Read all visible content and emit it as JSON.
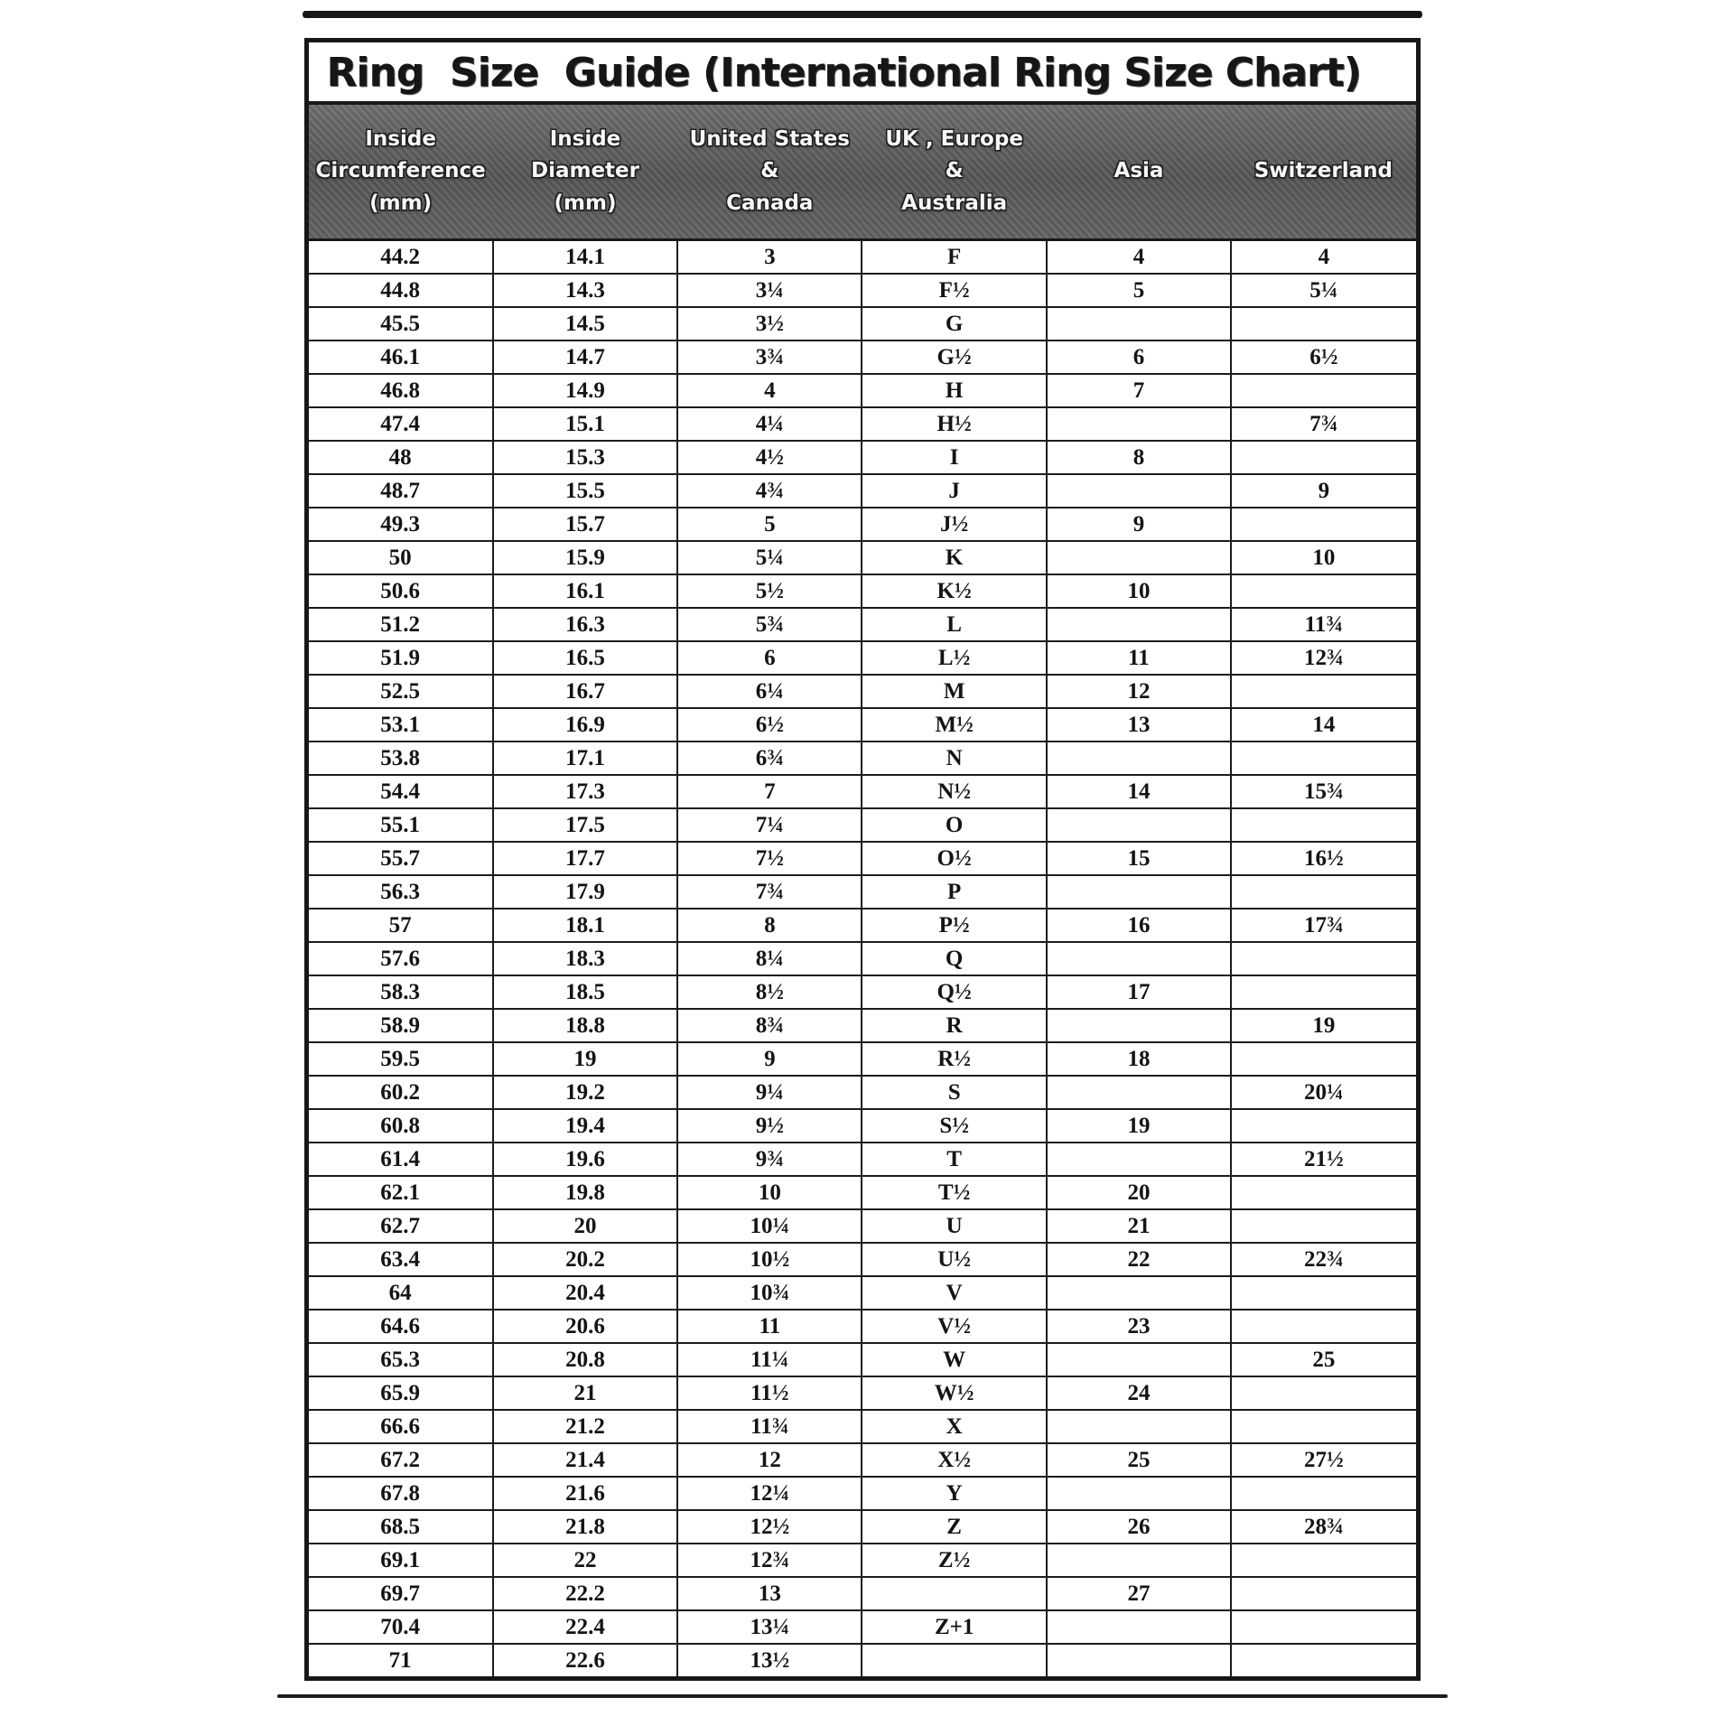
{
  "title": "Ring  Size  Guide (International Ring Size Chart)",
  "colors": {
    "border": "#171717",
    "header_band": "#616161",
    "header_text": "#f7f7f7",
    "page_background": "#ffffff"
  },
  "table": {
    "columns": [
      {
        "id": "inside-circumference",
        "label": "Inside Circumference (mm)",
        "label_lines": [
          "Inside",
          "Circumference",
          "(mm)"
        ]
      },
      {
        "id": "inside-diameter",
        "label": "Inside Diameter (mm)",
        "label_lines": [
          "Inside",
          "Diameter",
          "(mm)"
        ]
      },
      {
        "id": "us-canada",
        "label": "United States & Canada",
        "label_lines": [
          "United States",
          "&",
          "Canada"
        ]
      },
      {
        "id": "uk-europe-australia",
        "label": "UK , Europe & Australia",
        "label_lines": [
          "UK , Europe",
          "&",
          "Australia"
        ]
      },
      {
        "id": "asia",
        "label": "Asia",
        "label_lines": [
          "Asia"
        ]
      },
      {
        "id": "switzerland",
        "label": "Switzerland",
        "label_lines": [
          "Switzerland"
        ]
      }
    ],
    "rows": [
      [
        "44.2",
        "14.1",
        "3",
        "F",
        "4",
        "4"
      ],
      [
        "44.8",
        "14.3",
        "3¼",
        "F½",
        "5",
        "5¼"
      ],
      [
        "45.5",
        "14.5",
        "3½",
        "G",
        "",
        ""
      ],
      [
        "46.1",
        "14.7",
        "3¾",
        "G½",
        "6",
        "6½"
      ],
      [
        "46.8",
        "14.9",
        "4",
        "H",
        "7",
        ""
      ],
      [
        "47.4",
        "15.1",
        "4¼",
        "H½",
        "",
        "7¾"
      ],
      [
        "48",
        "15.3",
        "4½",
        "I",
        "8",
        ""
      ],
      [
        "48.7",
        "15.5",
        "4¾",
        "J",
        "",
        "9"
      ],
      [
        "49.3",
        "15.7",
        "5",
        "J½",
        "9",
        ""
      ],
      [
        "50",
        "15.9",
        "5¼",
        "K",
        "",
        "10"
      ],
      [
        "50.6",
        "16.1",
        "5½",
        "K½",
        "10",
        ""
      ],
      [
        "51.2",
        "16.3",
        "5¾",
        "L",
        "",
        "11¾"
      ],
      [
        "51.9",
        "16.5",
        "6",
        "L½",
        "11",
        "12¾"
      ],
      [
        "52.5",
        "16.7",
        "6¼",
        "M",
        "12",
        ""
      ],
      [
        "53.1",
        "16.9",
        "6½",
        "M½",
        "13",
        "14"
      ],
      [
        "53.8",
        "17.1",
        "6¾",
        "N",
        "",
        ""
      ],
      [
        "54.4",
        "17.3",
        "7",
        "N½",
        "14",
        "15¾"
      ],
      [
        "55.1",
        "17.5",
        "7¼",
        "O",
        "",
        ""
      ],
      [
        "55.7",
        "17.7",
        "7½",
        "O½",
        "15",
        "16½"
      ],
      [
        "56.3",
        "17.9",
        "7¾",
        "P",
        "",
        ""
      ],
      [
        "57",
        "18.1",
        "8",
        "P½",
        "16",
        "17¾"
      ],
      [
        "57.6",
        "18.3",
        "8¼",
        "Q",
        "",
        ""
      ],
      [
        "58.3",
        "18.5",
        "8½",
        "Q½",
        "17",
        ""
      ],
      [
        "58.9",
        "18.8",
        "8¾",
        "R",
        "",
        "19"
      ],
      [
        "59.5",
        "19",
        "9",
        "R½",
        "18",
        ""
      ],
      [
        "60.2",
        "19.2",
        "9¼",
        "S",
        "",
        "20¼"
      ],
      [
        "60.8",
        "19.4",
        "9½",
        "S½",
        "19",
        ""
      ],
      [
        "61.4",
        "19.6",
        "9¾",
        "T",
        "",
        "21½"
      ],
      [
        "62.1",
        "19.8",
        "10",
        "T½",
        "20",
        ""
      ],
      [
        "62.7",
        "20",
        "10¼",
        "U",
        "21",
        ""
      ],
      [
        "63.4",
        "20.2",
        "10½",
        "U½",
        "22",
        "22¾"
      ],
      [
        "64",
        "20.4",
        "10¾",
        "V",
        "",
        ""
      ],
      [
        "64.6",
        "20.6",
        "11",
        "V½",
        "23",
        ""
      ],
      [
        "65.3",
        "20.8",
        "11¼",
        "W",
        "",
        "25"
      ],
      [
        "65.9",
        "21",
        "11½",
        "W½",
        "24",
        ""
      ],
      [
        "66.6",
        "21.2",
        "11¾",
        "X",
        "",
        ""
      ],
      [
        "67.2",
        "21.4",
        "12",
        "X½",
        "25",
        "27½"
      ],
      [
        "67.8",
        "21.6",
        "12¼",
        "Y",
        "",
        ""
      ],
      [
        "68.5",
        "21.8",
        "12½",
        "Z",
        "26",
        "28¾"
      ],
      [
        "69.1",
        "22",
        "12¾",
        "Z½",
        "",
        ""
      ],
      [
        "69.7",
        "22.2",
        "13",
        "",
        "27",
        ""
      ],
      [
        "70.4",
        "22.4",
        "13¼",
        "Z+1",
        "",
        ""
      ],
      [
        "71",
        "22.6",
        "13½",
        "",
        "",
        ""
      ]
    ]
  }
}
